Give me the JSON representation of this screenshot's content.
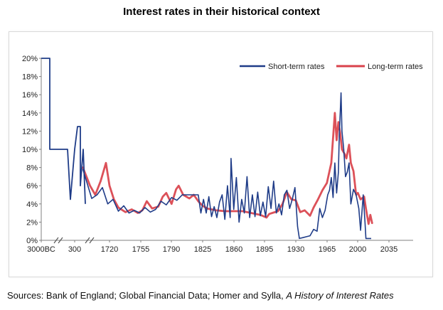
{
  "title": "Interest rates in their historical context",
  "source": {
    "prefix": "Sources: Bank of England; Global Financial Data; Homer and Sylla, ",
    "italic": "A History of Interest Rates"
  },
  "chart_data": {
    "type": "line",
    "x_ticks": [
      "3000BC",
      "300",
      "1720",
      "1755",
      "1790",
      "1825",
      "1860",
      "1895",
      "1930",
      "1965",
      "2000",
      "2035"
    ],
    "y_ticks": [
      "0%",
      "2%",
      "4%",
      "6%",
      "8%",
      "10%",
      "12%",
      "14%",
      "16%",
      "18%",
      "20%"
    ],
    "ylim": [
      0,
      20
    ],
    "axis_breaks": true,
    "legend_position": "top-right",
    "grid": false,
    "colors": {
      "short": "#1f3c88",
      "long": "#d9424b"
    },
    "series": [
      {
        "name": "Short-term rates",
        "key": "short",
        "points": [
          [
            "3000BC",
            20
          ],
          [
            "3000BC",
            10
          ],
          [
            "~",
            10
          ],
          [
            "~",
            10
          ],
          [
            "~",
            4.5
          ],
          [
            "~",
            10
          ],
          [
            "300",
            12.5
          ],
          [
            "300",
            6
          ],
          [
            "~",
            10
          ],
          [
            "~",
            4
          ]
        ],
        "values": [
          [
            1690,
            7.8
          ],
          [
            1700,
            4.6
          ],
          [
            1706,
            5.0
          ],
          [
            1712,
            5.8
          ],
          [
            1718,
            4.0
          ],
          [
            1724,
            4.5
          ],
          [
            1730,
            3.2
          ],
          [
            1736,
            3.8
          ],
          [
            1742,
            3.0
          ],
          [
            1748,
            3.3
          ],
          [
            1754,
            3.0
          ],
          [
            1760,
            3.6
          ],
          [
            1766,
            3.1
          ],
          [
            1772,
            3.4
          ],
          [
            1778,
            4.3
          ],
          [
            1784,
            3.9
          ],
          [
            1790,
            4.7
          ],
          [
            1796,
            4.4
          ],
          [
            1802,
            5.0
          ],
          [
            1808,
            5.0
          ],
          [
            1814,
            5.0
          ],
          [
            1820,
            5.0
          ],
          [
            1823,
            3.0
          ],
          [
            1826,
            4.5
          ],
          [
            1829,
            3.0
          ],
          [
            1832,
            4.8
          ],
          [
            1835,
            2.6
          ],
          [
            1838,
            3.7
          ],
          [
            1841,
            2.5
          ],
          [
            1844,
            4.2
          ],
          [
            1847,
            5.0
          ],
          [
            1850,
            2.3
          ],
          [
            1853,
            6.0
          ],
          [
            1856,
            2.5
          ],
          [
            1857,
            9.0
          ],
          [
            1860,
            3.4
          ],
          [
            1863,
            6.9
          ],
          [
            1866,
            2.0
          ],
          [
            1869,
            4.5
          ],
          [
            1872,
            3.0
          ],
          [
            1875,
            7.0
          ],
          [
            1878,
            2.5
          ],
          [
            1881,
            5.0
          ],
          [
            1884,
            2.6
          ],
          [
            1887,
            5.3
          ],
          [
            1890,
            2.7
          ],
          [
            1893,
            4.2
          ],
          [
            1896,
            2.6
          ],
          [
            1899,
            5.9
          ],
          [
            1902,
            3.5
          ],
          [
            1905,
            6.5
          ],
          [
            1908,
            3.0
          ],
          [
            1911,
            4.0
          ],
          [
            1914,
            2.8
          ],
          [
            1917,
            5.0
          ],
          [
            1920,
            5.5
          ],
          [
            1923,
            3.5
          ],
          [
            1926,
            4.5
          ],
          [
            1929,
            5.8
          ],
          [
            1932,
            1.5
          ],
          [
            1934,
            0.2
          ],
          [
            1938,
            0.3
          ],
          [
            1942,
            0.4
          ],
          [
            1946,
            0.5
          ],
          [
            1950,
            1.2
          ],
          [
            1954,
            1.0
          ],
          [
            1957,
            3.5
          ],
          [
            1960,
            2.5
          ],
          [
            1963,
            3.3
          ],
          [
            1966,
            5.0
          ],
          [
            1968,
            5.5
          ],
          [
            1970,
            6.9
          ],
          [
            1972,
            4.7
          ],
          [
            1974,
            8.5
          ],
          [
            1976,
            5.2
          ],
          [
            1978,
            7.5
          ],
          [
            1979,
            11.4
          ],
          [
            1981,
            16.2
          ],
          [
            1982,
            12.0
          ],
          [
            1984,
            10.0
          ],
          [
            1986,
            7.0
          ],
          [
            1988,
            7.5
          ],
          [
            1990,
            8.5
          ],
          [
            1992,
            4.0
          ],
          [
            1995,
            5.6
          ],
          [
            1998,
            5.0
          ],
          [
            2001,
            3.5
          ],
          [
            2003,
            1.1
          ],
          [
            2006,
            5.0
          ],
          [
            2008,
            2.0
          ],
          [
            2009,
            0.2
          ],
          [
            2015,
            0.2
          ]
        ]
      },
      {
        "name": "Long-term rates",
        "key": "long",
        "values": [
          [
            1690,
            8.0
          ],
          [
            1698,
            6.0
          ],
          [
            1704,
            5.0
          ],
          [
            1710,
            6.5
          ],
          [
            1716,
            8.5
          ],
          [
            1720,
            6.0
          ],
          [
            1725,
            4.5
          ],
          [
            1730,
            3.6
          ],
          [
            1738,
            3.1
          ],
          [
            1745,
            3.4
          ],
          [
            1752,
            3.0
          ],
          [
            1757,
            3.3
          ],
          [
            1762,
            4.3
          ],
          [
            1768,
            3.5
          ],
          [
            1775,
            3.7
          ],
          [
            1780,
            4.8
          ],
          [
            1784,
            5.2
          ],
          [
            1790,
            4.0
          ],
          [
            1795,
            5.6
          ],
          [
            1798,
            6.0
          ],
          [
            1803,
            5.0
          ],
          [
            1810,
            4.6
          ],
          [
            1815,
            5.0
          ],
          [
            1820,
            4.3
          ],
          [
            1825,
            3.8
          ],
          [
            1830,
            3.5
          ],
          [
            1840,
            3.3
          ],
          [
            1850,
            3.2
          ],
          [
            1860,
            3.2
          ],
          [
            1870,
            3.2
          ],
          [
            1880,
            3.0
          ],
          [
            1890,
            2.8
          ],
          [
            1897,
            2.5
          ],
          [
            1900,
            2.9
          ],
          [
            1910,
            3.2
          ],
          [
            1915,
            4.0
          ],
          [
            1920,
            5.3
          ],
          [
            1925,
            4.5
          ],
          [
            1930,
            4.4
          ],
          [
            1935,
            3.1
          ],
          [
            1940,
            3.3
          ],
          [
            1946,
            2.7
          ],
          [
            1950,
            3.6
          ],
          [
            1955,
            4.5
          ],
          [
            1960,
            5.5
          ],
          [
            1965,
            6.3
          ],
          [
            1970,
            8.5
          ],
          [
            1974,
            14.0
          ],
          [
            1976,
            11.0
          ],
          [
            1978,
            13.0
          ],
          [
            1980,
            11.8
          ],
          [
            1982,
            10.0
          ],
          [
            1985,
            9.5
          ],
          [
            1987,
            9.0
          ],
          [
            1990,
            10.5
          ],
          [
            1992,
            8.5
          ],
          [
            1995,
            7.6
          ],
          [
            1998,
            5.0
          ],
          [
            2000,
            5.2
          ],
          [
            2003,
            4.5
          ],
          [
            2007,
            4.8
          ],
          [
            2009,
            3.5
          ],
          [
            2012,
            1.8
          ],
          [
            2014,
            2.8
          ],
          [
            2016,
            1.9
          ]
        ]
      }
    ]
  }
}
